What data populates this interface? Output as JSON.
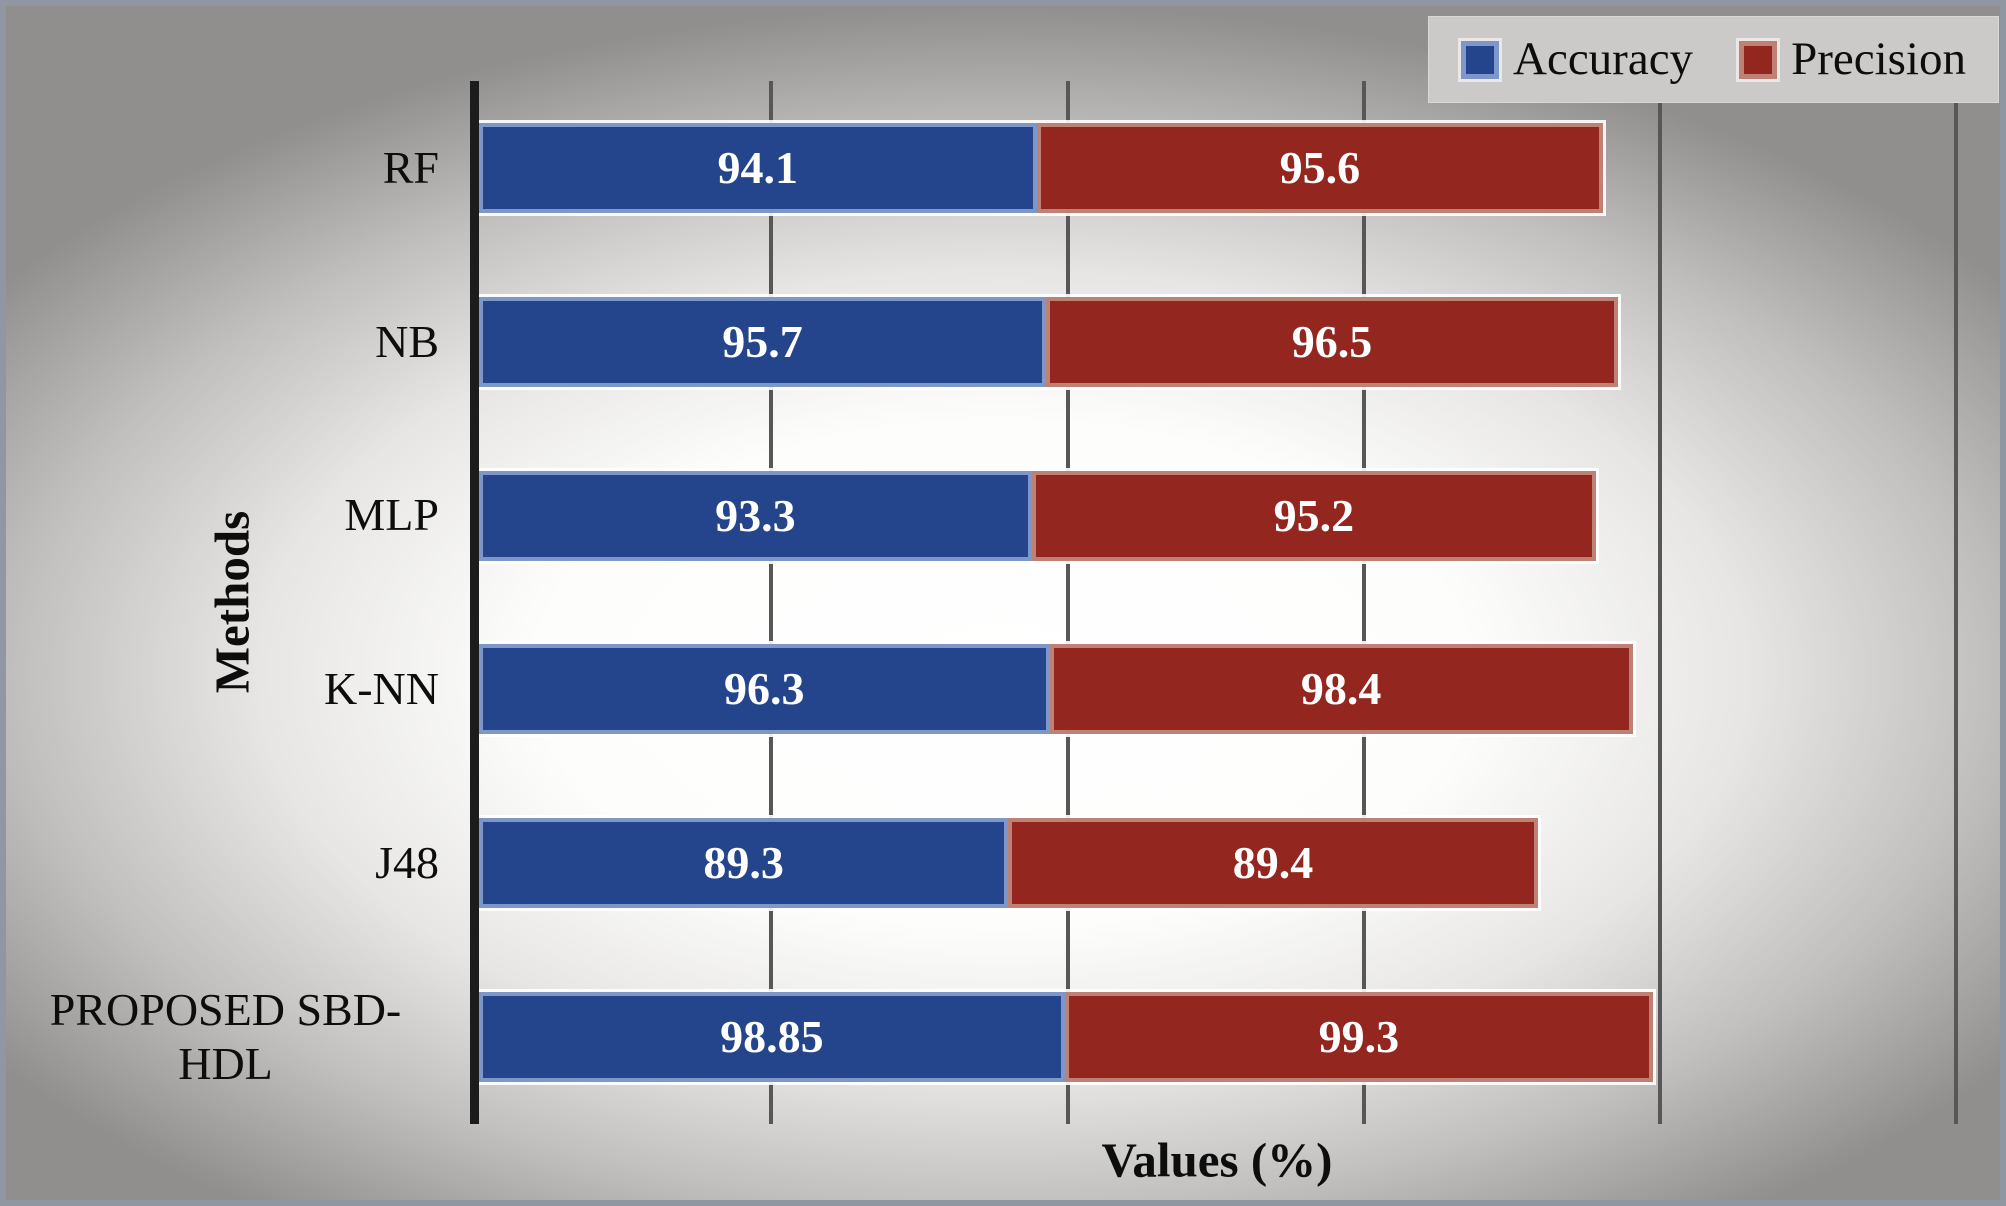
{
  "chart_data": {
    "type": "bar",
    "orientation": "horizontal-stacked",
    "title": "",
    "xlabel": "Values (%)",
    "ylabel": "Methods",
    "categories": [
      "RF",
      "NB",
      "MLP",
      "K-NN",
      "J48",
      "PROPOSED SBD-HDL"
    ],
    "series": [
      {
        "name": "Accuracy",
        "values": [
          94.1,
          95.7,
          93.3,
          96.3,
          89.3,
          98.85
        ],
        "fill_color": "#24458b",
        "border_color": "#7d97c9"
      },
      {
        "name": "Precision",
        "values": [
          95.6,
          96.5,
          95.2,
          98.4,
          89.4,
          99.3
        ],
        "fill_color": "#932720",
        "border_color": "#c08175"
      }
    ],
    "value_labels": "inside-center",
    "value_label_color": "#ffffff",
    "xlim": [
      0,
      255
    ],
    "gridlines_at": [
      0,
      50,
      100,
      150,
      200,
      250
    ],
    "gridline_color": "#575757",
    "axis_line_color": "#1c1c1c",
    "x_tick_labels_visible": false,
    "legend_position": "top-right",
    "legend_background": "#cbcac9",
    "grid": true
  }
}
